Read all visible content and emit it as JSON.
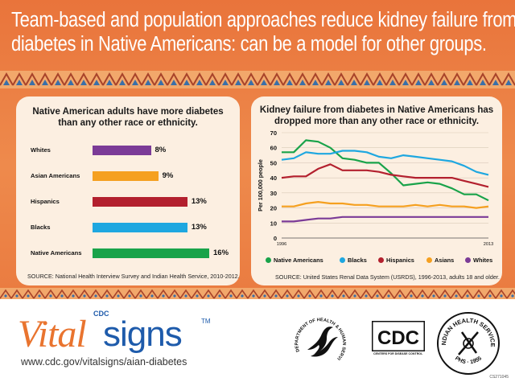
{
  "headline": {
    "line1": "Team-based and population approaches reduce kidney failure from",
    "line2": "diabetes in Native Americans: can be a model for other groups."
  },
  "colors": {
    "background_orange": "#e9743b",
    "card_bg": "#fcefe1",
    "native_americans": "#19a34a",
    "blacks": "#1ea7e0",
    "hispanics": "#b3202e",
    "asians": "#f5a020",
    "whites": "#7b3b97"
  },
  "chart_data": [
    {
      "type": "bar",
      "orientation": "horizontal",
      "title": "Native American adults have more diabetes than any other race or ethnicity.",
      "categories": [
        "Whites",
        "Asian Americans",
        "Hispanics",
        "Blacks",
        "Native Americans"
      ],
      "values": [
        8,
        9,
        13,
        13,
        16
      ],
      "value_labels": [
        "8%",
        "9%",
        "13%",
        "13%",
        "16%"
      ],
      "unit": "%",
      "xlim": [
        0,
        16
      ],
      "source": "SOURCE: National Health Interview Survey and Indian Health Service, 2010-2012."
    },
    {
      "type": "line",
      "title": "Kidney failure from diabetes in Native Americans has dropped more than any other race or ethnicity.",
      "ylabel": "Per 100,000 people",
      "xlabel": "",
      "x": [
        1996,
        1997,
        1998,
        1999,
        2000,
        2001,
        2002,
        2003,
        2004,
        2005,
        2006,
        2007,
        2008,
        2009,
        2010,
        2011,
        2012,
        2013
      ],
      "x_tick_labels": [
        "1996",
        "2013"
      ],
      "ylim": [
        0,
        70
      ],
      "y_ticks": [
        0,
        10,
        20,
        30,
        40,
        50,
        60,
        70
      ],
      "series": [
        {
          "name": "Native Americans",
          "values": [
            57,
            57,
            65,
            64,
            60,
            53,
            52,
            50,
            50,
            43,
            35,
            36,
            37,
            36,
            33,
            29,
            29,
            25
          ]
        },
        {
          "name": "Blacks",
          "values": [
            52,
            53,
            57,
            56,
            56,
            58,
            58,
            57,
            54,
            53,
            55,
            54,
            53,
            52,
            51,
            48,
            44,
            42
          ]
        },
        {
          "name": "Hispanics",
          "values": [
            40,
            41,
            41,
            46,
            49,
            45,
            45,
            45,
            44,
            42,
            41,
            40,
            40,
            40,
            40,
            38,
            36,
            34
          ]
        },
        {
          "name": "Asians",
          "values": [
            21,
            21,
            23,
            24,
            23,
            23,
            22,
            22,
            21,
            21,
            21,
            22,
            21,
            22,
            21,
            21,
            20,
            21
          ]
        },
        {
          "name": "Whites",
          "values": [
            11,
            11,
            12,
            13,
            13,
            14,
            14,
            14,
            14,
            14,
            14,
            14,
            14,
            14,
            14,
            14,
            14,
            14
          ]
        }
      ],
      "source": "SOURCE: United States Renal Data System (USRDS), 1996-2013, adults 18 and older."
    }
  ],
  "footer": {
    "cdc_small": "CDC",
    "logo_vital": "Vital",
    "logo_signs": "signs",
    "logo_tm": "TM",
    "url": "www.cdc.gov/vitalsigns/aian-diabetes",
    "hhs_seal_text": "DEPARTMENT OF HEALTH & HUMAN SERVICES USA",
    "cdc_logo_text": "CDC",
    "cdc_tagline": "CENTERS FOR DISEASE CONTROL AND PREVENTION",
    "ihs_text": "INDIAN HEALTH SERVICE",
    "ihs_bottom": "PHS · 1955",
    "code": "CS271045"
  }
}
